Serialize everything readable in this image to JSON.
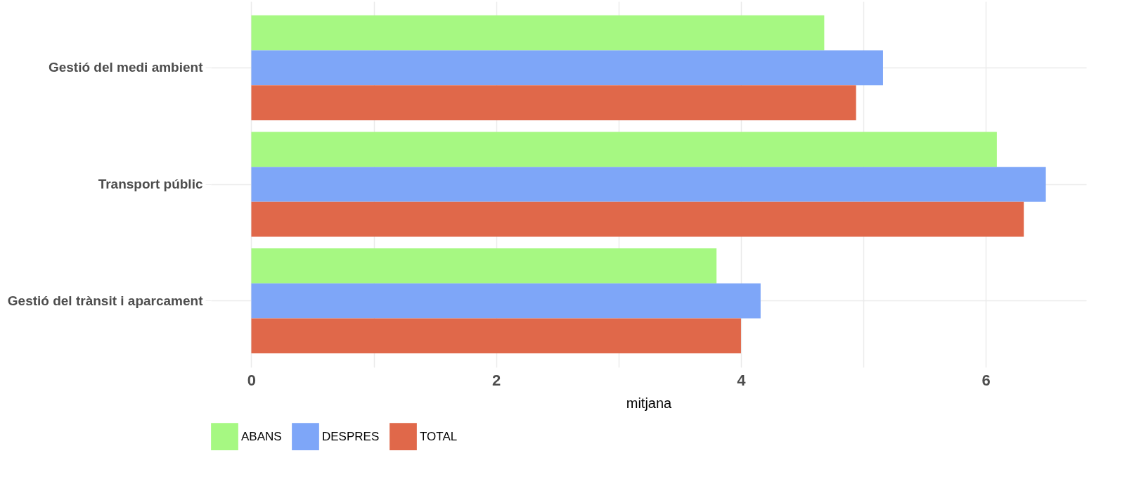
{
  "chart_data": {
    "type": "bar",
    "orientation": "horizontal",
    "xlabel": "mitjana",
    "categories": [
      "Gestió del medi ambient",
      "Transport públic",
      "Gestió del trànsit i aparcament"
    ],
    "series": [
      {
        "name": "ABANS",
        "color": "#a6f882",
        "values": [
          4.68,
          6.09,
          3.8
        ]
      },
      {
        "name": "DESPRES",
        "color": "#7ea6f8",
        "values": [
          5.16,
          6.49,
          4.16
        ]
      },
      {
        "name": "TOTAL",
        "color": "#e0684a",
        "values": [
          4.94,
          6.31,
          4.0
        ]
      }
    ],
    "xlim": [
      -0.33,
      6.82
    ],
    "xticks": [
      0,
      {
        "value": 1,
        "label": null
      },
      2,
      {
        "value": 3,
        "label": null
      },
      4,
      {
        "value": 5,
        "label": null
      },
      6
    ],
    "grid": true,
    "legend": "bottom"
  }
}
